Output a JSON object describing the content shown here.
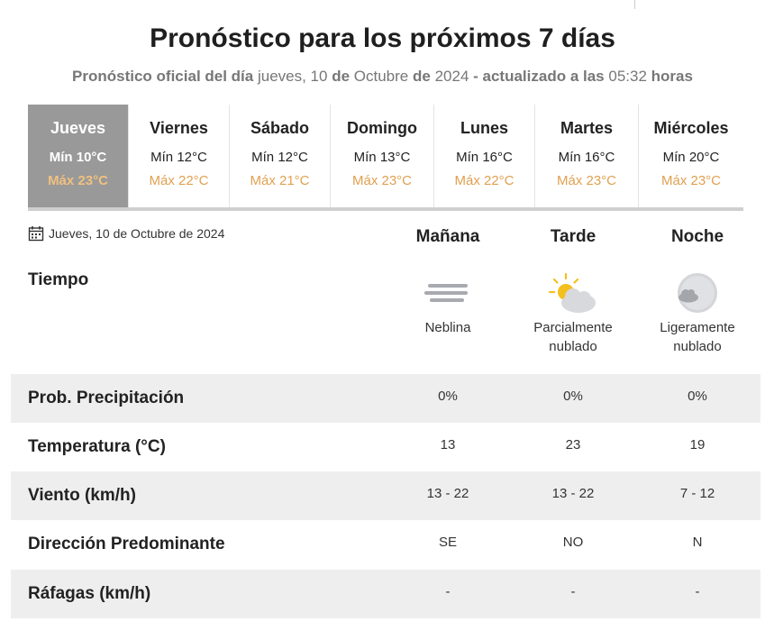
{
  "header": {
    "title": "Pronóstico para los próximos 7 días",
    "subtitle_prefix": "Pronóstico oficial del día",
    "weekday": "jueves, 10",
    "de1": "de",
    "month": "Octubre",
    "de2": "de",
    "year": "2024",
    "updated_label": "- actualizado a las",
    "time": "05:32",
    "hours_label": "horas"
  },
  "days": [
    {
      "name": "Jueves",
      "min": "Mín 10°C",
      "max": "Máx 23°C",
      "active": true
    },
    {
      "name": "Viernes",
      "min": "Mín 12°C",
      "max": "Máx 22°C"
    },
    {
      "name": "Sábado",
      "min": "Mín 12°C",
      "max": "Máx 21°C"
    },
    {
      "name": "Domingo",
      "min": "Mín 13°C",
      "max": "Máx 23°C"
    },
    {
      "name": "Lunes",
      "min": "Mín 16°C",
      "max": "Máx 22°C"
    },
    {
      "name": "Martes",
      "min": "Mín 16°C",
      "max": "Máx 23°C"
    },
    {
      "name": "Miércoles",
      "min": "Mín 20°C",
      "max": "Máx 23°C"
    }
  ],
  "detail": {
    "date": "Jueves, 10 de Octubre de 2024",
    "date_icon": "calendar-icon",
    "periods": [
      "Mañana",
      "Tarde",
      "Noche"
    ],
    "weather_label": "Tiempo",
    "weather": [
      {
        "icon": "fog-icon",
        "line1": "Neblina",
        "line2": ""
      },
      {
        "icon": "partly-cloudy-day-icon",
        "line1": "Parcialmente",
        "line2": "nublado"
      },
      {
        "icon": "partly-cloudy-night-icon",
        "line1": "Ligeramente",
        "line2": "nublado"
      }
    ],
    "rows": [
      {
        "label": "Prob. Precipitación",
        "values": [
          "0%",
          "0%",
          "0%"
        ]
      },
      {
        "label": "Temperatura (°C)",
        "values": [
          "13",
          "23",
          "19"
        ]
      },
      {
        "label": "Viento (km/h)",
        "values": [
          "13 - 22",
          "13 - 22",
          "7 - 12"
        ]
      },
      {
        "label": "Dirección Predominante",
        "values": [
          "SE",
          "NO",
          "N"
        ]
      },
      {
        "label": "Ráfagas (km/h)",
        "values": [
          "-",
          "-",
          "-"
        ]
      }
    ]
  },
  "colors": {
    "active_day_bg": "#999999",
    "max_temp": "#e0a050",
    "shade_row": "#eeeeee"
  }
}
